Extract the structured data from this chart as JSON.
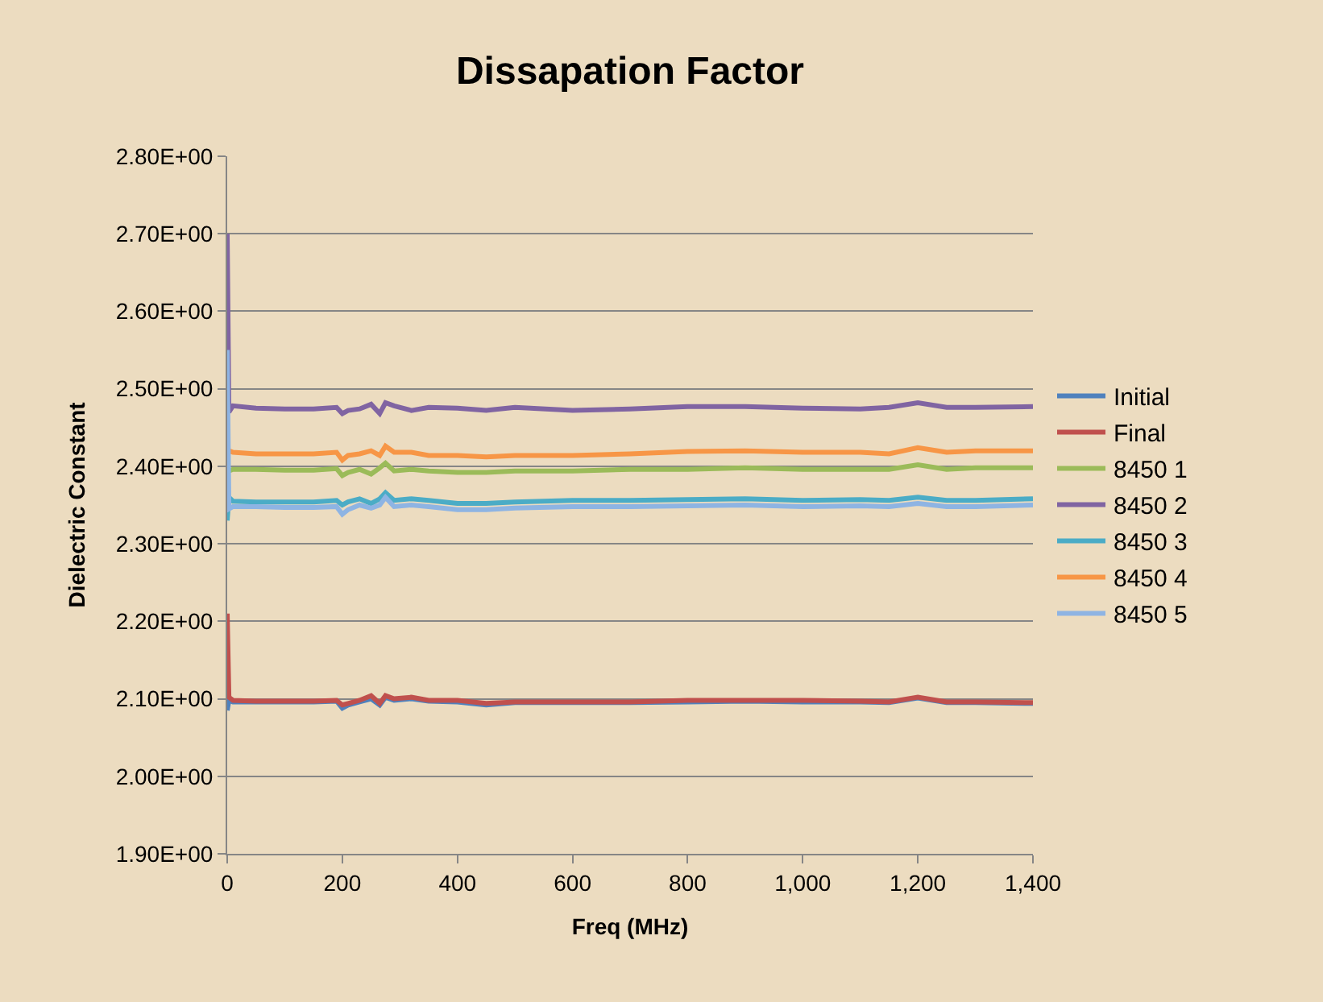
{
  "chart_data": {
    "type": "line",
    "title": "Dissapation Factor",
    "xlabel": "Freq (MHz)",
    "ylabel": "Dielectric Constant",
    "x": [
      0,
      3,
      10,
      50,
      100,
      150,
      190,
      200,
      210,
      230,
      250,
      265,
      275,
      290,
      320,
      350,
      400,
      450,
      500,
      600,
      700,
      800,
      900,
      1000,
      1100,
      1150,
      1200,
      1250,
      1300,
      1400
    ],
    "xlim": [
      0,
      1400
    ],
    "xticks": [
      0,
      200,
      400,
      600,
      800,
      {
        "value": 1000,
        "label": "1,000"
      },
      {
        "value": 1200,
        "label": "1,200"
      },
      {
        "value": 1400,
        "label": "1,400"
      }
    ],
    "ylim": [
      1.9,
      2.8
    ],
    "yticks": [
      {
        "value": 1.9,
        "label": "1.90E+00"
      },
      {
        "value": 2.0,
        "label": "2.00E+00"
      },
      {
        "value": 2.1,
        "label": "2.10E+00"
      },
      {
        "value": 2.2,
        "label": "2.20E+00"
      },
      {
        "value": 2.3,
        "label": "2.30E+00"
      },
      {
        "value": 2.4,
        "label": "2.40E+00"
      },
      {
        "value": 2.5,
        "label": "2.50E+00"
      },
      {
        "value": 2.6,
        "label": "2.60E+00"
      },
      {
        "value": 2.7,
        "label": "2.70E+00"
      },
      {
        "value": 2.8,
        "label": "2.80E+00"
      }
    ],
    "grid": "y",
    "legend": "right",
    "marker": "none",
    "line_style": "solid",
    "series": [
      {
        "name": "Initial",
        "color": "#4f81bd",
        "values": [
          2.085,
          2.098,
          2.096,
          2.096,
          2.096,
          2.096,
          2.097,
          2.088,
          2.092,
          2.096,
          2.1,
          2.092,
          2.102,
          2.098,
          2.1,
          2.097,
          2.096,
          2.092,
          2.095,
          2.095,
          2.095,
          2.096,
          2.097,
          2.096,
          2.096,
          2.095,
          2.101,
          2.095,
          2.095,
          2.094
        ]
      },
      {
        "name": "Final",
        "color": "#c0504d",
        "values": [
          2.21,
          2.102,
          2.098,
          2.097,
          2.097,
          2.097,
          2.098,
          2.092,
          2.094,
          2.098,
          2.104,
          2.094,
          2.104,
          2.1,
          2.102,
          2.098,
          2.098,
          2.094,
          2.096,
          2.096,
          2.096,
          2.098,
          2.098,
          2.098,
          2.097,
          2.096,
          2.102,
          2.096,
          2.096,
          2.095
        ]
      },
      {
        "name": "8450 1",
        "color": "#9bbb59",
        "values": [
          2.4,
          2.394,
          2.396,
          2.396,
          2.395,
          2.395,
          2.397,
          2.388,
          2.392,
          2.396,
          2.39,
          2.398,
          2.404,
          2.394,
          2.396,
          2.394,
          2.392,
          2.392,
          2.394,
          2.394,
          2.396,
          2.396,
          2.398,
          2.396,
          2.396,
          2.396,
          2.402,
          2.396,
          2.398,
          2.398
        ]
      },
      {
        "name": "8450 2",
        "color": "#8064a2",
        "values": [
          2.7,
          2.47,
          2.478,
          2.475,
          2.474,
          2.474,
          2.476,
          2.468,
          2.472,
          2.474,
          2.48,
          2.468,
          2.482,
          2.478,
          2.472,
          2.476,
          2.475,
          2.472,
          2.476,
          2.472,
          2.474,
          2.477,
          2.477,
          2.475,
          2.474,
          2.476,
          2.482,
          2.476,
          2.476,
          2.477
        ]
      },
      {
        "name": "8450 3",
        "color": "#4bacc6",
        "values": [
          2.33,
          2.36,
          2.355,
          2.354,
          2.354,
          2.354,
          2.356,
          2.35,
          2.354,
          2.358,
          2.352,
          2.358,
          2.366,
          2.356,
          2.358,
          2.356,
          2.352,
          2.352,
          2.354,
          2.356,
          2.356,
          2.357,
          2.358,
          2.356,
          2.357,
          2.356,
          2.36,
          2.356,
          2.356,
          2.358
        ]
      },
      {
        "name": "8450 4",
        "color": "#f79646",
        "values": [
          null,
          2.42,
          2.418,
          2.416,
          2.416,
          2.416,
          2.418,
          2.408,
          2.414,
          2.416,
          2.42,
          2.414,
          2.426,
          2.418,
          2.418,
          2.414,
          2.414,
          2.412,
          2.414,
          2.414,
          2.416,
          2.419,
          2.42,
          2.418,
          2.418,
          2.416,
          2.424,
          2.418,
          2.42,
          2.42
        ]
      },
      {
        "name": "8450 5",
        "color": "#8eb4e3",
        "values": [
          2.55,
          2.345,
          2.348,
          2.348,
          2.347,
          2.347,
          2.348,
          2.338,
          2.344,
          2.35,
          2.346,
          2.35,
          2.36,
          2.348,
          2.35,
          2.348,
          2.344,
          2.344,
          2.346,
          2.348,
          2.348,
          2.349,
          2.35,
          2.348,
          2.349,
          2.348,
          2.352,
          2.348,
          2.348,
          2.35
        ]
      }
    ]
  }
}
